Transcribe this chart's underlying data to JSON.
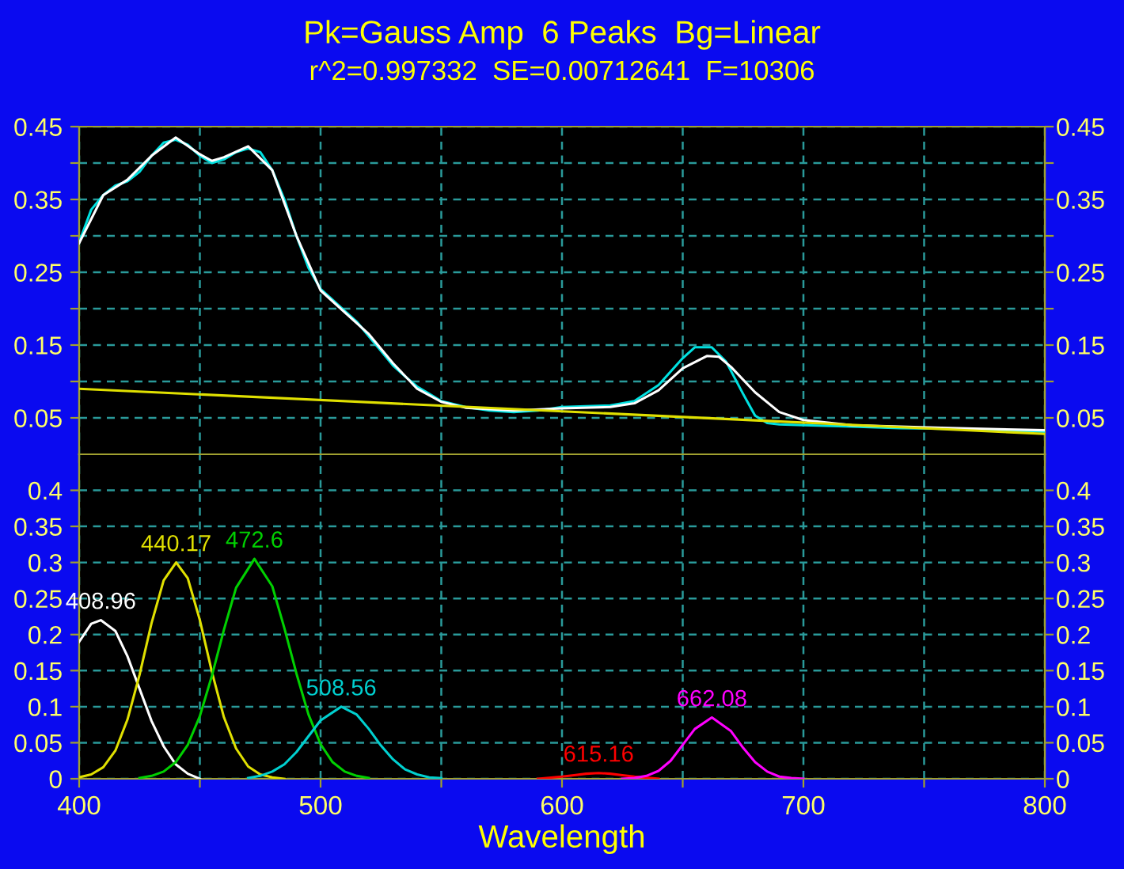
{
  "chart_data": [
    {
      "type": "line",
      "title": "Pk=Gauss Amp  6 Peaks  Bg=Linear",
      "subtitle": "r^2=0.997332  SE=0.00712641  F=10306",
      "grid": true,
      "tick_labels": "y",
      "marker": "none",
      "line_style": "solid",
      "xlim": [
        400,
        800
      ],
      "xticks": [
        {
          "value": 400,
          "label": null
        },
        {
          "value": 450,
          "label": null
        },
        {
          "value": 500,
          "label": null
        },
        {
          "value": 550,
          "label": null
        },
        {
          "value": 600,
          "label": null
        },
        {
          "value": 650,
          "label": null
        },
        {
          "value": 700,
          "label": null
        },
        {
          "value": 750,
          "label": null
        },
        {
          "value": 800,
          "label": null
        }
      ],
      "ylim": [
        0,
        0.45
      ],
      "yticks": [
        {
          "value": 0.05,
          "label": "0.05"
        },
        {
          "value": 0.1,
          "label": null
        },
        {
          "value": 0.15,
          "label": "0.15"
        },
        {
          "value": 0.2,
          "label": null
        },
        {
          "value": 0.25,
          "label": "0.25"
        },
        {
          "value": 0.3,
          "label": null
        },
        {
          "value": 0.35,
          "label": "0.35"
        },
        {
          "value": 0.4,
          "label": null
        },
        {
          "value": 0.45,
          "label": "0.45"
        }
      ],
      "y2lim": [
        0,
        0.45
      ],
      "y2ticks": [
        {
          "value": 0.05,
          "label": "0.05"
        },
        {
          "value": 0.1,
          "label": null
        },
        {
          "value": 0.15,
          "label": "0.15"
        },
        {
          "value": 0.2,
          "label": null
        },
        {
          "value": 0.25,
          "label": "0.25"
        },
        {
          "value": 0.3,
          "label": null
        },
        {
          "value": 0.35,
          "label": "0.35"
        },
        {
          "value": 0.4,
          "label": null
        },
        {
          "value": 0.45,
          "label": "0.45"
        }
      ],
      "series": [
        {
          "color": "#00e0e0",
          "x": [
            400,
            405,
            410,
            415,
            420,
            425,
            430,
            435,
            440,
            445,
            450,
            455,
            460,
            465,
            470,
            475,
            480,
            485,
            490,
            495,
            500,
            505,
            510,
            515,
            520,
            525,
            530,
            535,
            540,
            545,
            550,
            560,
            570,
            580,
            590,
            600,
            610,
            620,
            630,
            640,
            650,
            655,
            662,
            668,
            675,
            680,
            685,
            690,
            700,
            720,
            740,
            760,
            780,
            800
          ],
          "values": [
            0.291,
            0.336,
            0.356,
            0.369,
            0.375,
            0.388,
            0.41,
            0.428,
            0.432,
            0.425,
            0.41,
            0.4,
            0.405,
            0.415,
            0.42,
            0.415,
            0.39,
            0.35,
            0.3,
            0.256,
            0.227,
            0.212,
            0.197,
            0.182,
            0.162,
            0.142,
            0.122,
            0.107,
            0.093,
            0.083,
            0.073,
            0.065,
            0.06,
            0.058,
            0.06,
            0.065,
            0.066,
            0.067,
            0.073,
            0.095,
            0.132,
            0.147,
            0.147,
            0.127,
            0.083,
            0.053,
            0.043,
            0.041,
            0.04,
            0.038,
            0.036,
            0.035,
            0.033,
            0.031
          ]
        },
        {
          "color": "#ffffff",
          "x": [
            400,
            410,
            420,
            430,
            440,
            450,
            455,
            460,
            470,
            480,
            490,
            500,
            510,
            520,
            530,
            540,
            550,
            560,
            580,
            600,
            620,
            630,
            640,
            650,
            660,
            665,
            670,
            680,
            690,
            700,
            720,
            760,
            800
          ],
          "values": [
            0.29,
            0.356,
            0.377,
            0.41,
            0.435,
            0.412,
            0.403,
            0.408,
            0.423,
            0.39,
            0.3,
            0.225,
            0.195,
            0.165,
            0.125,
            0.09,
            0.072,
            0.064,
            0.06,
            0.063,
            0.065,
            0.07,
            0.088,
            0.118,
            0.135,
            0.134,
            0.12,
            0.085,
            0.058,
            0.047,
            0.04,
            0.036,
            0.033
          ]
        },
        {
          "color": "#e0e000",
          "x": [
            400,
            800
          ],
          "values": [
            0.09,
            0.028
          ]
        }
      ]
    },
    {
      "type": "line",
      "xlabel": "Wavelength",
      "grid": true,
      "marker": "none",
      "line_style": "solid",
      "xlim": [
        400,
        800
      ],
      "xticks": [
        400,
        {
          "value": 450,
          "label": null
        },
        500,
        {
          "value": 550,
          "label": null
        },
        600,
        {
          "value": 650,
          "label": null
        },
        700,
        {
          "value": 750,
          "label": null
        },
        800
      ],
      "ylim": [
        0,
        0.45
      ],
      "yticks": [
        0,
        0.05,
        0.1,
        0.15,
        0.2,
        0.25,
        0.3,
        0.35,
        0.4
      ],
      "y2lim": [
        0,
        0.45
      ],
      "y2ticks": [
        0,
        0.05,
        0.1,
        0.15,
        0.2,
        0.25,
        0.3,
        0.35,
        0.4
      ],
      "series": [
        {
          "name": "408.96",
          "color": "#ffffff",
          "x": [
            400,
            405,
            408.96,
            415,
            420,
            425,
            430,
            435,
            440,
            445,
            450
          ],
          "values": [
            0.19,
            0.215,
            0.22,
            0.205,
            0.17,
            0.125,
            0.08,
            0.045,
            0.02,
            0.007,
            0
          ]
        },
        {
          "name": "440.17",
          "color": "#e0e000",
          "x": [
            400,
            405,
            410,
            415,
            420,
            425,
            430,
            435,
            440.17,
            445,
            450,
            455,
            460,
            465,
            470,
            475,
            480,
            485
          ],
          "values": [
            0.002,
            0.006,
            0.016,
            0.039,
            0.082,
            0.144,
            0.216,
            0.275,
            0.3,
            0.278,
            0.22,
            0.148,
            0.085,
            0.042,
            0.017,
            0.006,
            0.002,
            0
          ]
        },
        {
          "name": "472.6",
          "color": "#00d000",
          "x": [
            425,
            430,
            435,
            440,
            445,
            450,
            455,
            460,
            465,
            472.6,
            480,
            485,
            490,
            495,
            500,
            505,
            510,
            515,
            520
          ],
          "values": [
            0.001,
            0.004,
            0.01,
            0.023,
            0.047,
            0.087,
            0.143,
            0.207,
            0.265,
            0.305,
            0.267,
            0.209,
            0.146,
            0.089,
            0.048,
            0.023,
            0.01,
            0.004,
            0.001
          ]
        },
        {
          "name": "508.56",
          "color": "#00d0d0",
          "x": [
            470,
            475,
            480,
            485,
            490,
            495,
            500,
            508.56,
            515,
            520,
            525,
            530,
            535,
            540,
            545,
            550
          ],
          "values": [
            0.001,
            0.004,
            0.01,
            0.02,
            0.037,
            0.059,
            0.081,
            0.1,
            0.089,
            0.069,
            0.046,
            0.027,
            0.013,
            0.006,
            0.002,
            0.001
          ]
        },
        {
          "name": "615.16",
          "color": "#ff0000",
          "x": [
            590,
            600,
            605,
            610,
            615.16,
            620,
            625,
            630,
            640
          ],
          "values": [
            0,
            0.003,
            0.005,
            0.007,
            0.008,
            0.007,
            0.005,
            0.003,
            0
          ]
        },
        {
          "name": "662.08",
          "color": "#ff00ff",
          "x": [
            625,
            630,
            635,
            640,
            645,
            650,
            655,
            662.08,
            670,
            675,
            680,
            685,
            690,
            695,
            700
          ],
          "values": [
            0,
            0.001,
            0.004,
            0.011,
            0.025,
            0.047,
            0.069,
            0.085,
            0.066,
            0.043,
            0.023,
            0.01,
            0.003,
            0.001,
            0
          ]
        }
      ]
    }
  ]
}
